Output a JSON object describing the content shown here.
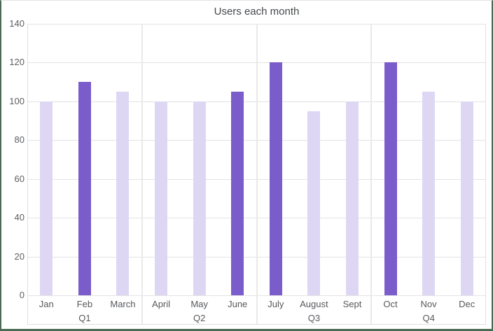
{
  "window": {
    "border_color": "#4a6a53",
    "background": "#ffffff"
  },
  "chart_data": {
    "type": "bar",
    "title": "Users each month",
    "categories": [
      "Jan",
      "Feb",
      "March",
      "April",
      "May",
      "June",
      "July",
      "August",
      "Sept",
      "Oct",
      "Nov",
      "Dec"
    ],
    "groups": [
      "Q1",
      "Q2",
      "Q3",
      "Q4"
    ],
    "values": [
      100,
      110,
      105,
      100,
      100,
      105,
      120,
      95,
      100,
      120,
      105,
      100
    ],
    "highlighted": [
      false,
      true,
      false,
      false,
      false,
      true,
      true,
      false,
      false,
      true,
      false,
      false
    ],
    "bar_color": "#ded7f4",
    "highlight_color": "#7b5ccb",
    "xlabel": "",
    "ylabel": "",
    "ylim": [
      0,
      140
    ],
    "ytick_step": 20,
    "yticks": [
      0,
      20,
      40,
      60,
      80,
      100,
      120,
      140
    ],
    "grid": true,
    "legend": "none"
  }
}
